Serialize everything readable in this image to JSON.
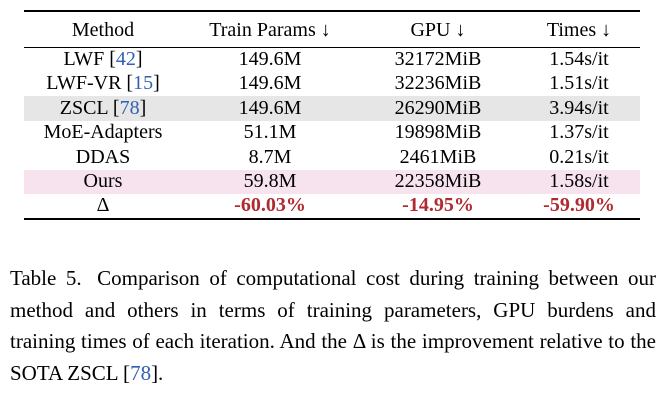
{
  "table": {
    "headers": [
      "Method",
      "Train Params ↓",
      "GPU ↓",
      "Times ↓"
    ],
    "rows": [
      {
        "method": "LWF",
        "cite": "42",
        "params": "149.6M",
        "gpu": "32172MiB",
        "time": "1.54s/it",
        "highlight": "none"
      },
      {
        "method": "LWF-VR",
        "cite": "15",
        "params": "149.6M",
        "gpu": "32236MiB",
        "time": "1.51s/it",
        "highlight": "none"
      },
      {
        "method": "ZSCL",
        "cite": "78",
        "params": "149.6M",
        "gpu": "26290MiB",
        "time": "3.94s/it",
        "highlight": "gray"
      },
      {
        "method": "MoE-Adapters",
        "cite": "",
        "params": "51.1M",
        "gpu": "19898MiB",
        "time": "1.37s/it",
        "highlight": "none"
      },
      {
        "method": "DDAS",
        "cite": "",
        "params": "8.7M",
        "gpu": "2461MiB",
        "time": "0.21s/it",
        "highlight": "none"
      },
      {
        "method": "Ours",
        "cite": "",
        "params": "59.8M",
        "gpu": "22358MiB",
        "time": "1.58s/it",
        "highlight": "pink"
      }
    ],
    "delta_row": {
      "method": "Δ",
      "params": "-60.03%",
      "gpu": "-14.95%",
      "time": "-59.90%"
    }
  },
  "caption": {
    "label": "Table 5.",
    "text_part1": "Comparison of computational cost during training between our method and others in terms of training parameters, GPU burdens and training times of each iteration. And the Δ is the improvement relative to the SOTA ZSCL [",
    "cite": "78",
    "text_part2": "]."
  },
  "colors": {
    "citation": "#2f5fb3",
    "delta": "#b02a30",
    "gray_highlight": "#e6e6e6",
    "pink_highlight": "#f7e3ee"
  }
}
